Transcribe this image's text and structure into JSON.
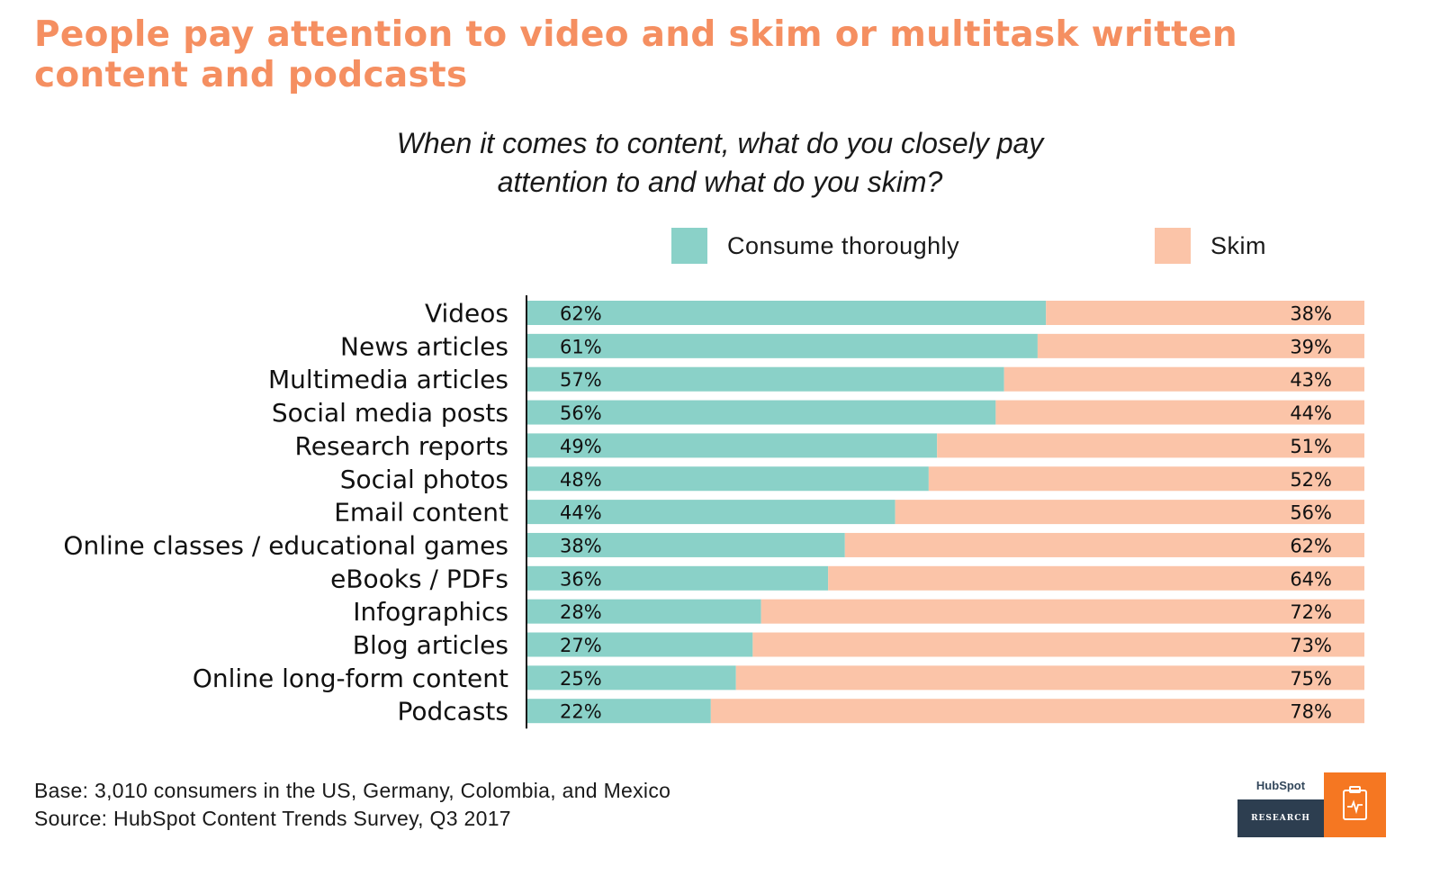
{
  "title": "People pay attention to video and skim or multitask written content and podcasts",
  "subtitle_line1": "When it comes to content, what do you closely pay",
  "subtitle_line2": "attention to and what do you skim?",
  "colors": {
    "title": "#f58f61",
    "thorough": "#8ad1c8",
    "skim": "#fbc4a8",
    "logo_orange": "#f57722",
    "logo_dark": "#2d3e50"
  },
  "chart_data": {
    "type": "bar",
    "orientation": "horizontal",
    "stacked": true,
    "categories": [
      "Videos",
      "News articles",
      "Multimedia articles",
      "Social media posts",
      "Research reports",
      "Social photos",
      "Email content",
      "Online classes / educational games",
      "eBooks / PDFs",
      "Infographics",
      "Blog articles",
      "Online long-form content",
      "Podcasts"
    ],
    "series": [
      {
        "name": "Consume thoroughly",
        "values": [
          62,
          61,
          57,
          56,
          49,
          48,
          44,
          38,
          36,
          28,
          27,
          25,
          22
        ]
      },
      {
        "name": "Skim",
        "values": [
          38,
          39,
          43,
          44,
          51,
          52,
          56,
          62,
          64,
          72,
          73,
          75,
          78
        ]
      }
    ],
    "value_suffix": "%",
    "xlim": [
      0,
      100
    ],
    "grid": false,
    "legend": "top"
  },
  "footnote": {
    "base": "Base: 3,010 consumers in the US, Germany, Colombia, and Mexico",
    "source": "Source: HubSpot Content Trends Survey, Q3 2017"
  },
  "logo": {
    "brand": "HubSpot",
    "tagline": "RESEARCH",
    "icon": "clipboard-pulse-icon"
  }
}
